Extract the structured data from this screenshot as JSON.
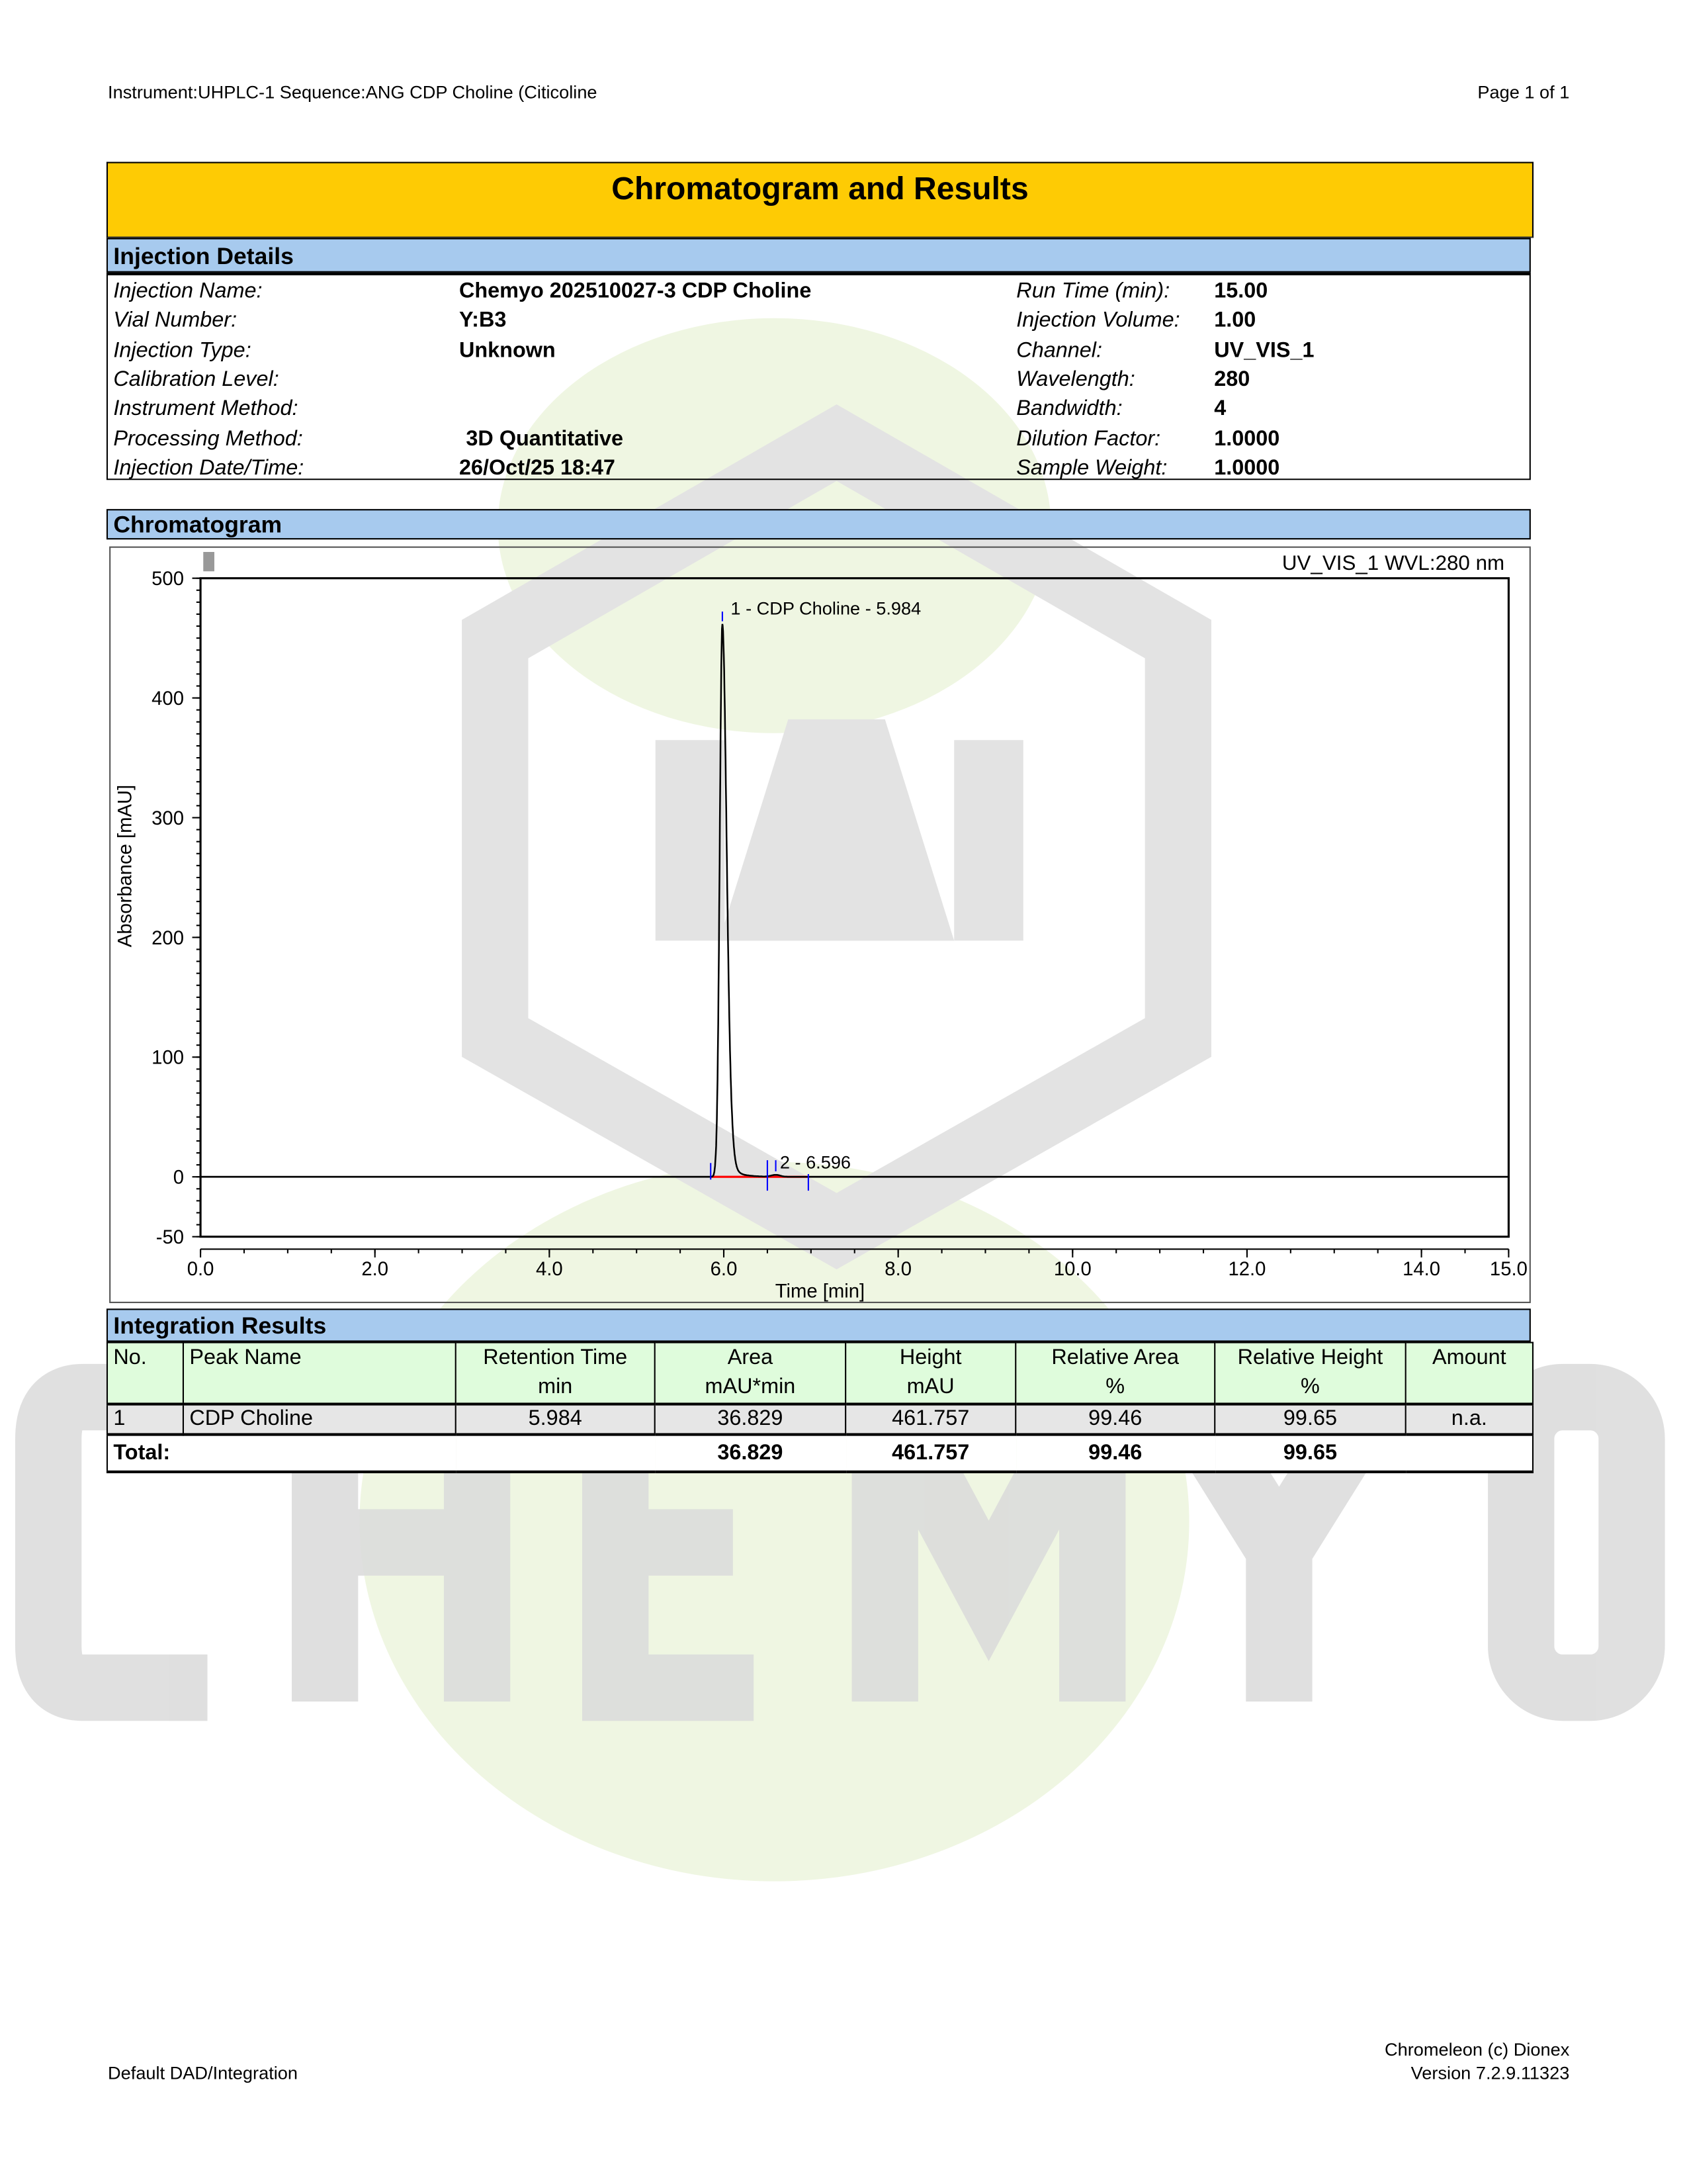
{
  "header": {
    "left": "Instrument:UHPLC-1   Sequence:ANG CDP Choline (Citicoline",
    "right": "Page 1 of 1"
  },
  "title": "Chromatogram and Results",
  "watermark": {
    "text": "CHEMYO"
  },
  "injection_details": {
    "heading": "Injection Details",
    "left": [
      {
        "label": "Injection Name:",
        "value": "Chemyo 202510027-3 CDP Choline"
      },
      {
        "label": "Vial Number:",
        "value": "Y:B3"
      },
      {
        "label": "Injection Type:",
        "value": "Unknown"
      },
      {
        "label": "Calibration Level:",
        "value": ""
      },
      {
        "label": "Instrument Method:",
        "value": ""
      },
      {
        "label": "Processing Method:",
        "value": "3D Quantitative"
      },
      {
        "label": "Injection Date/Time:",
        "value": "26/Oct/25 18:47"
      }
    ],
    "right": [
      {
        "label": "Run Time (min):",
        "value": "15.00"
      },
      {
        "label": "Injection Volume:",
        "value": "1.00"
      },
      {
        "label": "Channel:",
        "value": "UV_VIS_1"
      },
      {
        "label": "Wavelength:",
        "value": "280"
      },
      {
        "label": "Bandwidth:",
        "value": "4"
      },
      {
        "label": "Dilution Factor:",
        "value": "1.0000"
      },
      {
        "label": "Sample Weight:",
        "value": "1.0000"
      }
    ]
  },
  "chromatogram": {
    "heading": "Chromatogram"
  },
  "chart_data": {
    "type": "line",
    "title": "UV_VIS_1 WVL:280 nm",
    "xlabel": "Time [min]",
    "ylabel": "Absorbance [mAU]",
    "xlim": [
      0,
      15
    ],
    "ylim": [
      -50,
      500
    ],
    "xticks": [
      "0.0",
      "2.0",
      "4.0",
      "6.0",
      "8.0",
      "10.0",
      "12.0",
      "14.0",
      "15.0"
    ],
    "yticks": [
      "500",
      "400",
      "300",
      "200",
      "100",
      "0",
      "-50"
    ],
    "peaks": [
      {
        "label": "1 - CDP Choline - 5.984",
        "rt": 5.984,
        "height": 461.757
      },
      {
        "label": "2 - 6.596",
        "rt": 6.596,
        "height": 1.6
      }
    ],
    "baseline_range": [
      5.85,
      6.97
    ],
    "colors": {
      "trace": "#000000",
      "baseline": "#ff0000",
      "markers": "#0000ff"
    }
  },
  "integration": {
    "heading": "Integration Results",
    "columns": [
      {
        "name": "No.",
        "unit": ""
      },
      {
        "name": "Peak Name",
        "unit": ""
      },
      {
        "name": "Retention Time",
        "unit": "min"
      },
      {
        "name": "Area",
        "unit": "mAU*min"
      },
      {
        "name": "Height",
        "unit": "mAU"
      },
      {
        "name": "Relative Area",
        "unit": "%"
      },
      {
        "name": "Relative Height",
        "unit": "%"
      },
      {
        "name": "Amount",
        "unit": ""
      }
    ],
    "rows": [
      [
        "1",
        "CDP Choline",
        "5.984",
        "36.829",
        "461.757",
        "99.46",
        "99.65",
        "n.a."
      ]
    ],
    "total": {
      "label": "Total:",
      "area": "36.829",
      "height": "461.757",
      "rel_area": "99.46",
      "rel_height": "99.65"
    }
  },
  "footer": {
    "left": "Default DAD/Integration",
    "right1": "Chromeleon (c) Dionex",
    "right2": "Version 7.2.9.11323"
  }
}
